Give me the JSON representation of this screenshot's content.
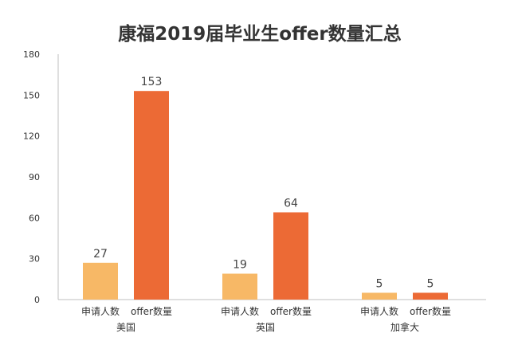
{
  "chart_data": {
    "type": "bar",
    "title": "康福2019届毕业生offer数量汇总",
    "groups": [
      {
        "name": "美国",
        "bars": [
          {
            "label": "申请人数",
            "value": 27
          },
          {
            "label": "offer数量",
            "value": 153
          }
        ]
      },
      {
        "name": "英国",
        "bars": [
          {
            "label": "申请人数",
            "value": 19
          },
          {
            "label": "offer数量",
            "value": 64
          }
        ]
      },
      {
        "name": "加拿大",
        "bars": [
          {
            "label": "申请人数",
            "value": 5
          },
          {
            "label": "offer数量",
            "value": 5
          }
        ]
      }
    ],
    "ylim": [
      0,
      180
    ],
    "yticks": [
      0,
      30,
      60,
      90,
      120,
      150,
      180
    ],
    "grid": false,
    "legend": "none",
    "colors": {
      "申请人数": "#F7B866",
      "offer数量": "#EC6A35"
    }
  }
}
